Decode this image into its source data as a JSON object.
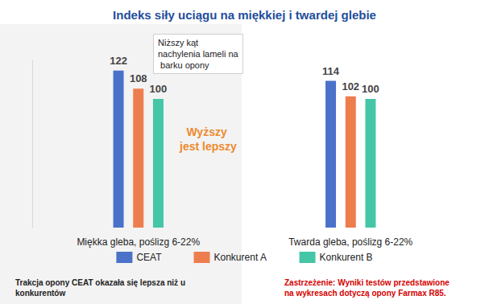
{
  "chart_data": {
    "type": "bar",
    "title": "Indeks siły uciągu na miękkiej i twardej glebie",
    "categories": [
      "Miękka gleba, poślizg 6-22%",
      "Twarda gleba, poślizg 6-22%"
    ],
    "series": [
      {
        "name": "CEAT",
        "color": "#4a72c8",
        "values": [
          122,
          114
        ]
      },
      {
        "name": "Konkurent A",
        "color": "#ee7d4e",
        "values": [
          108,
          102
        ]
      },
      {
        "name": "Konkurent B",
        "color": "#45c6a6",
        "values": [
          100,
          100
        ]
      }
    ],
    "ylim": [
      0,
      130
    ],
    "tick_labels": "x",
    "grid": false,
    "legend": "bottom",
    "data_labels": true,
    "annotations": [
      "Niższy kąt nachylenia lameli na barku opony",
      "Wyższy jest lepszy"
    ],
    "footnotes": [
      "Trakcja opony CEAT okazała się lepsza niż u konkurentów",
      "Zastrzeżenie: Wyniki testów przedstawione na wykresach dotyczą opony Farmax R85."
    ]
  }
}
